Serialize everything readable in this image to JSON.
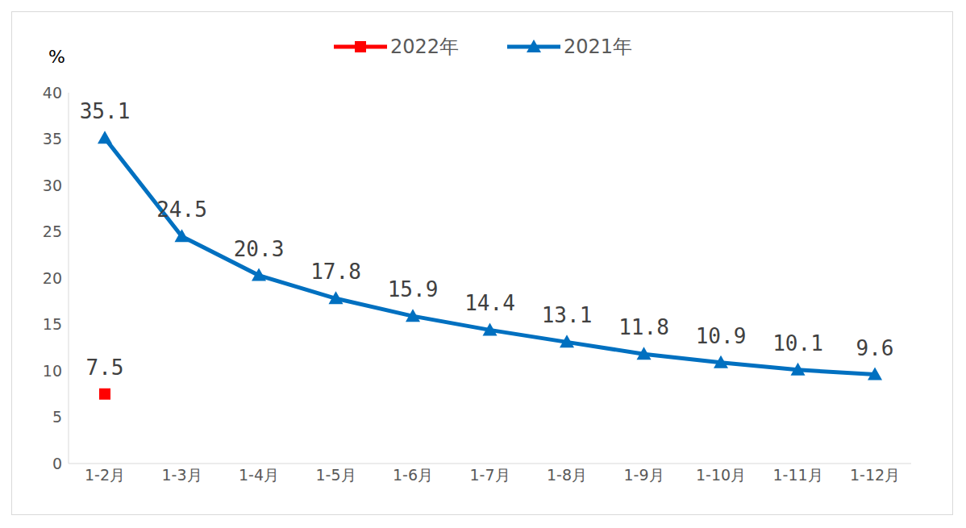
{
  "chart_data": {
    "type": "line",
    "y_label": "%",
    "categories": [
      "1-2月",
      "1-3月",
      "1-4月",
      "1-5月",
      "1-6月",
      "1-7月",
      "1-8月",
      "1-9月",
      "1-10月",
      "1-11月",
      "1-12月"
    ],
    "series": [
      {
        "name": "2022年",
        "color": "#ff0000",
        "marker": "square",
        "values": [
          7.5,
          null,
          null,
          null,
          null,
          null,
          null,
          null,
          null,
          null,
          null
        ]
      },
      {
        "name": "2021年",
        "color": "#0070c0",
        "marker": "triangle",
        "values": [
          35.1,
          24.5,
          20.3,
          17.8,
          15.9,
          14.4,
          13.1,
          11.8,
          10.9,
          10.1,
          9.6
        ]
      }
    ],
    "ylim": [
      0,
      40
    ],
    "yticks": [
      0,
      5,
      10,
      15,
      20,
      25,
      30,
      35,
      40
    ],
    "grid": false,
    "legend": "top",
    "data_labels": true
  }
}
